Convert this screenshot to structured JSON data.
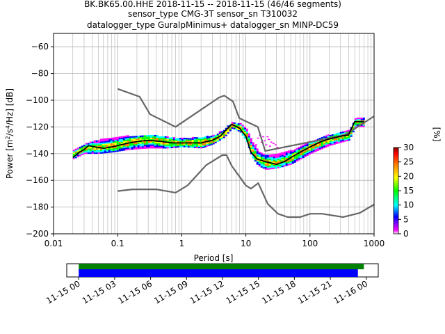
{
  "title_lines": [
    "BK.BK65.00.HHE   2018-11-15 -- 2018-11-15  (46/46 segments)",
    "sensor_type CMG-3T sensor_sn T310032",
    "datalogger_type GuralpMinimus+ datalogger_sn MINP-DC59"
  ],
  "chart_data": {
    "type": "heatmap",
    "title": "BK.BK65.00.HHE   2018-11-15 -- 2018-11-15  (46/46 segments)",
    "xlabel": "Period [s]",
    "ylabel": "Power [m²/s⁴/Hz] [dB]",
    "xscale": "log",
    "xlim": [
      0.01,
      1000
    ],
    "ylim": [
      -200,
      -50
    ],
    "x_ticks": [
      0.01,
      0.1,
      1,
      10,
      100,
      1000
    ],
    "x_tick_labels": [
      "0.01",
      "0.1",
      "1",
      "10",
      "100",
      "1000"
    ],
    "y_ticks": [
      -200,
      -180,
      -160,
      -140,
      -120,
      -100,
      -80,
      -60
    ],
    "grid": true,
    "colorbar": {
      "label": "[%]",
      "range": [
        0,
        30
      ],
      "ticks": [
        0,
        5,
        10,
        15,
        20,
        25,
        30
      ],
      "colors": [
        "#ffffff",
        "#ff00ff",
        "#0000ff",
        "#00ffff",
        "#00ff00",
        "#ffff00",
        "#ff8000",
        "#ff0000",
        "#800000"
      ]
    },
    "density_color_scale": [
      "#ff00ff",
      "#ff00ff",
      "#0000ff",
      "#00ffff",
      "#00ff00",
      "#00ff00",
      "#ffff00",
      "#ff8000",
      "#ff0000"
    ],
    "high_noise_model": [
      [
        0.1,
        -91.5
      ],
      [
        0.22,
        -97.4
      ],
      [
        0.32,
        -110.5
      ],
      [
        0.8,
        -120
      ],
      [
        3.8,
        -98
      ],
      [
        4.6,
        -96.5
      ],
      [
        6.3,
        -101
      ],
      [
        7.9,
        -113.5
      ],
      [
        15.4,
        -120
      ],
      [
        20,
        -138
      ],
      [
        354.8,
        -126
      ],
      [
        1000,
        -112
      ]
    ],
    "low_noise_model": [
      [
        0.1,
        -168
      ],
      [
        0.17,
        -166.7
      ],
      [
        0.4,
        -166.7
      ],
      [
        0.8,
        -169.2
      ],
      [
        1.24,
        -163.7
      ],
      [
        2.4,
        -148.6
      ],
      [
        4.3,
        -141.1
      ],
      [
        5,
        -141.1
      ],
      [
        6,
        -149
      ],
      [
        10,
        -163.8
      ],
      [
        12,
        -166.2
      ],
      [
        15.6,
        -162.1
      ],
      [
        21.9,
        -177.5
      ],
      [
        31.6,
        -185
      ],
      [
        45,
        -187.5
      ],
      [
        70,
        -187.5
      ],
      [
        101,
        -185
      ],
      [
        154,
        -185
      ],
      [
        328,
        -187.5
      ],
      [
        600,
        -184.4
      ],
      [
        1000,
        -178
      ]
    ],
    "mean_psd": [
      [
        0.02,
        -143
      ],
      [
        0.025,
        -139
      ],
      [
        0.03,
        -137
      ],
      [
        0.035,
        -134
      ],
      [
        0.045,
        -135
      ],
      [
        0.06,
        -136
      ],
      [
        0.08,
        -135
      ],
      [
        0.1,
        -134
      ],
      [
        0.15,
        -132
      ],
      [
        0.2,
        -131
      ],
      [
        0.3,
        -130
      ],
      [
        0.5,
        -131
      ],
      [
        0.7,
        -132
      ],
      [
        1,
        -132
      ],
      [
        2,
        -132
      ],
      [
        3,
        -130
      ],
      [
        4,
        -127
      ],
      [
        5,
        -122
      ],
      [
        6,
        -118
      ],
      [
        8,
        -121
      ],
      [
        10,
        -127
      ],
      [
        12,
        -139
      ],
      [
        15,
        -144
      ],
      [
        20,
        -146
      ],
      [
        25,
        -147
      ],
      [
        30,
        -148
      ],
      [
        40,
        -146
      ],
      [
        50,
        -143
      ],
      [
        70,
        -139
      ],
      [
        100,
        -135
      ],
      [
        150,
        -131
      ],
      [
        200,
        -129
      ],
      [
        300,
        -127
      ],
      [
        400,
        -126
      ],
      [
        500,
        -116
      ],
      [
        700,
        -116
      ]
    ],
    "density_band": [
      [
        0.02,
        -144,
        -138,
        -142,
        -140
      ],
      [
        0.03,
        -140,
        -133,
        -138,
        -135
      ],
      [
        0.05,
        -140,
        -130,
        -137,
        -134
      ],
      [
        0.08,
        -139,
        -128,
        -137,
        -133
      ],
      [
        0.15,
        -137,
        -127,
        -134,
        -130
      ],
      [
        0.3,
        -136,
        -126,
        -132,
        -128
      ],
      [
        0.6,
        -136,
        -128,
        -134,
        -130
      ],
      [
        1,
        -135,
        -129,
        -134,
        -131
      ],
      [
        2,
        -136,
        -128,
        -134,
        -130
      ],
      [
        3,
        -133,
        -127,
        -132,
        -129
      ],
      [
        4.5,
        -128,
        -122,
        -127,
        -124
      ],
      [
        6,
        -121,
        -117,
        -120,
        -118
      ],
      [
        8,
        -124,
        -118,
        -123,
        -120
      ],
      [
        10,
        -131,
        -122,
        -129,
        -125
      ],
      [
        12,
        -142,
        -130,
        -140,
        -136
      ],
      [
        15,
        -149,
        -138,
        -146,
        -143
      ],
      [
        20,
        -152,
        -142,
        -149,
        -145
      ],
      [
        30,
        -151,
        -141,
        -149,
        -146
      ],
      [
        50,
        -148,
        -138,
        -145,
        -142
      ],
      [
        100,
        -140,
        -131,
        -137,
        -134
      ],
      [
        200,
        -134,
        -126,
        -131,
        -128
      ],
      [
        400,
        -130,
        -123,
        -128,
        -125
      ],
      [
        500,
        -120,
        -114,
        -118,
        -116
      ],
      [
        700,
        -120,
        -114,
        -118,
        -116
      ]
    ],
    "scatter_outliers": [
      [
        15,
        -128
      ],
      [
        16,
        -126
      ],
      [
        17,
        -131
      ],
      [
        18,
        -127
      ],
      [
        20,
        -133
      ],
      [
        22,
        -129
      ],
      [
        24,
        -131
      ],
      [
        14,
        -133
      ],
      [
        19,
        -130
      ],
      [
        21,
        -127
      ],
      [
        23,
        -134
      ],
      [
        26,
        -132
      ],
      [
        28,
        -133
      ],
      [
        30,
        -135
      ]
    ],
    "time_axis": {
      "tick_labels": [
        "11-15 00",
        "11-15 03",
        "11-15 06",
        "11-15 09",
        "11-15 12",
        "11-15 15",
        "11-15 18",
        "11-15 21",
        "11-16 00"
      ],
      "range_hours": [
        -1,
        25
      ],
      "green_bar_hours": [
        0,
        23.8
      ],
      "blue_bar_hours": [
        0,
        23.3
      ]
    }
  }
}
